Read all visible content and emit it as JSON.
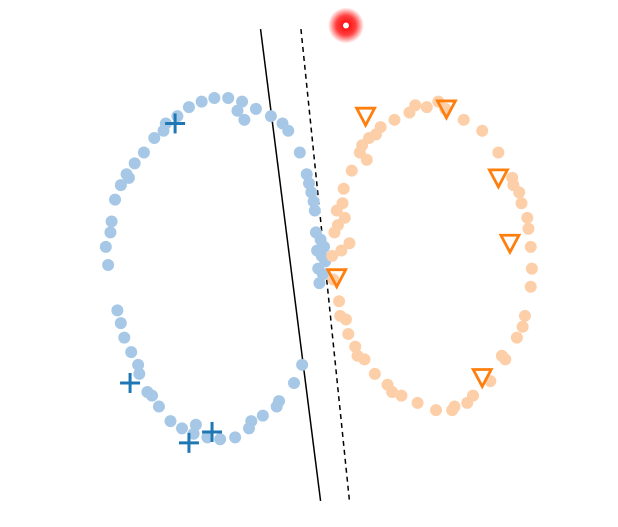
{
  "chart_data": {
    "type": "scatter",
    "title": "",
    "xlabel": "",
    "ylabel": "",
    "grid": false,
    "axes_visible": false,
    "xlim": [
      -1.65,
      3.2
    ],
    "ylim": [
      -1.35,
      1.35
    ],
    "series": [
      {
        "role": "unlabeled-class-a",
        "marker": "dot",
        "color": "#a6c8e6",
        "points": [
          [
            -1.08,
            0.1
          ],
          [
            -1.06,
            0.0
          ],
          [
            -1.03,
            0.24
          ],
          [
            -1.0,
            0.36
          ],
          [
            -0.98,
            -0.25
          ],
          [
            -0.95,
            0.44
          ],
          [
            -0.92,
            -0.4
          ],
          [
            -0.9,
            0.5
          ],
          [
            -0.86,
            -0.48
          ],
          [
            -0.83,
            0.56
          ],
          [
            -0.79,
            -0.6
          ],
          [
            -0.75,
            0.62
          ],
          [
            -0.72,
            -0.7
          ],
          [
            -0.66,
            0.7
          ],
          [
            -0.62,
            -0.78
          ],
          [
            -0.56,
            0.78
          ],
          [
            -0.52,
            -0.86
          ],
          [
            -0.46,
            0.82
          ],
          [
            -0.42,
            -0.9
          ],
          [
            -0.36,
            0.87
          ],
          [
            -0.32,
            -0.93
          ],
          [
            -0.25,
            0.9
          ],
          [
            -0.2,
            -0.95
          ],
          [
            -0.14,
            0.92
          ],
          [
            -0.09,
            -0.96
          ],
          [
            -0.02,
            0.92
          ],
          [
            0.04,
            -0.95
          ],
          [
            0.1,
            0.9
          ],
          [
            0.16,
            -0.9
          ],
          [
            0.22,
            0.86
          ],
          [
            0.28,
            -0.83
          ],
          [
            0.35,
            0.82
          ],
          [
            0.42,
            -0.75
          ],
          [
            0.5,
            0.74
          ],
          [
            0.55,
            -0.65
          ],
          [
            0.6,
            0.62
          ],
          [
            0.62,
            -0.55
          ],
          [
            0.66,
            0.5
          ],
          [
            0.7,
            0.4
          ],
          [
            0.73,
            0.3
          ],
          [
            0.74,
            0.18
          ],
          [
            0.75,
            0.08
          ],
          [
            0.76,
            -0.02
          ],
          [
            0.77,
            -0.1
          ],
          [
            0.78,
            0.14
          ],
          [
            0.79,
            0.05
          ],
          [
            0.72,
            0.35
          ],
          [
            0.68,
            0.45
          ],
          [
            -0.95,
            -0.32
          ],
          [
            -1.04,
            0.18
          ],
          [
            -0.88,
            0.48
          ],
          [
            0.06,
            0.85
          ],
          [
            0.12,
            0.8
          ],
          [
            -0.3,
            -0.88
          ],
          [
            0.18,
            -0.86
          ],
          [
            0.4,
            -0.78
          ],
          [
            -0.68,
            -0.72
          ],
          [
            -0.58,
            0.74
          ],
          [
            0.45,
            0.78
          ],
          [
            -0.8,
            -0.55
          ],
          [
            0.82,
            0.02
          ],
          [
            0.8,
            -0.05
          ],
          [
            0.81,
            0.1
          ]
        ]
      },
      {
        "role": "unlabeled-class-b",
        "marker": "dot",
        "color": "#fdcfa8",
        "points": [
          [
            0.88,
            0.05
          ],
          [
            0.89,
            -0.08
          ],
          [
            0.9,
            0.18
          ],
          [
            0.92,
            0.3
          ],
          [
            0.95,
            -0.28
          ],
          [
            0.98,
            0.42
          ],
          [
            1.02,
            -0.38
          ],
          [
            1.05,
            0.52
          ],
          [
            1.08,
            -0.45
          ],
          [
            1.12,
            0.62
          ],
          [
            1.16,
            -0.52
          ],
          [
            1.2,
            0.7
          ],
          [
            1.25,
            -0.6
          ],
          [
            1.3,
            0.76
          ],
          [
            1.36,
            -0.66
          ],
          [
            1.42,
            0.8
          ],
          [
            1.48,
            -0.72
          ],
          [
            1.55,
            0.84
          ],
          [
            1.62,
            -0.76
          ],
          [
            1.7,
            0.87
          ],
          [
            1.78,
            -0.8
          ],
          [
            1.86,
            0.86
          ],
          [
            1.94,
            -0.78
          ],
          [
            2.02,
            0.8
          ],
          [
            2.1,
            -0.72
          ],
          [
            2.18,
            0.74
          ],
          [
            2.25,
            -0.64
          ],
          [
            2.32,
            0.62
          ],
          [
            2.38,
            -0.52
          ],
          [
            2.44,
            0.48
          ],
          [
            2.48,
            -0.4
          ],
          [
            2.52,
            0.34
          ],
          [
            2.55,
            -0.28
          ],
          [
            2.58,
            0.2
          ],
          [
            2.6,
            0.1
          ],
          [
            2.61,
            -0.02
          ],
          [
            2.6,
            -0.12
          ],
          [
            2.57,
            0.26
          ],
          [
            2.53,
            -0.34
          ],
          [
            2.45,
            0.44
          ],
          [
            0.93,
            0.22
          ],
          [
            0.96,
            0.08
          ],
          [
            0.99,
            0.26
          ],
          [
            1.03,
            0.12
          ],
          [
            0.94,
            -0.2
          ],
          [
            1.0,
            -0.3
          ],
          [
            1.14,
            0.66
          ],
          [
            1.6,
            0.88
          ],
          [
            1.92,
            -0.8
          ],
          [
            2.05,
            -0.76
          ],
          [
            1.26,
            0.72
          ],
          [
            1.8,
            0.9
          ],
          [
            2.35,
            -0.5
          ],
          [
            2.5,
            0.4
          ],
          [
            1.1,
            -0.5
          ],
          [
            1.4,
            -0.7
          ],
          [
            0.97,
            0.34
          ],
          [
            1.18,
            0.58
          ]
        ]
      },
      {
        "role": "labeled-class-a",
        "marker": "plus",
        "color": "#1f77b4",
        "points": [
          [
            -0.48,
            0.78
          ],
          [
            -0.87,
            -0.65
          ],
          [
            -0.36,
            -0.98
          ],
          [
            -0.16,
            -0.92
          ]
        ]
      },
      {
        "role": "labeled-class-b",
        "marker": "triangle-down",
        "color": "#ff7f0e",
        "points": [
          [
            1.17,
            0.82
          ],
          [
            1.87,
            0.86
          ],
          [
            2.32,
            0.48
          ],
          [
            2.42,
            0.12
          ],
          [
            0.92,
            -0.07
          ],
          [
            2.18,
            -0.62
          ]
        ]
      },
      {
        "role": "query-point",
        "marker": "glowing-dot",
        "color": "#ff0000",
        "points": [
          [
            1.0,
            1.32
          ]
        ]
      }
    ],
    "lines": [
      {
        "role": "boundary-solid",
        "style": "solid",
        "color": "#000000",
        "points": [
          [
            0.26,
            1.3
          ],
          [
            0.78,
            -1.3
          ]
        ]
      },
      {
        "role": "boundary-dashed",
        "style": "dashed",
        "color": "#000000",
        "points": [
          [
            0.61,
            1.3
          ],
          [
            1.03,
            -1.3
          ]
        ]
      }
    ]
  }
}
